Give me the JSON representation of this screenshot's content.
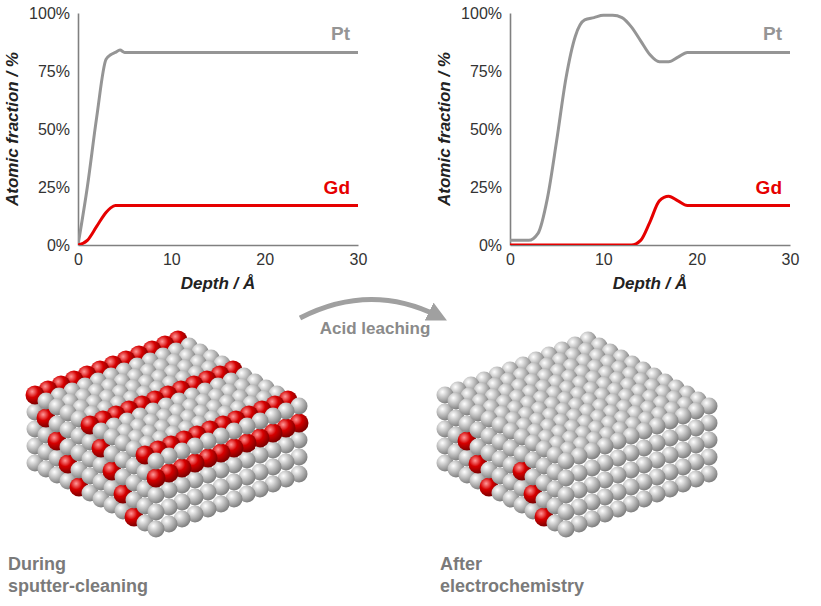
{
  "chart_data": [
    {
      "type": "line",
      "x": [
        0,
        1,
        2,
        3,
        3.5,
        4,
        4.5,
        5,
        10,
        20,
        30
      ],
      "series": [
        {
          "name": "Pt",
          "color": "#959595",
          "values": [
            0,
            25,
            55,
            80,
            82,
            83,
            84,
            83,
            83,
            83,
            83
          ]
        },
        {
          "name": "Gd",
          "color": "#e60000",
          "values": [
            0,
            2,
            8,
            14,
            16,
            17,
            17,
            17,
            17,
            17,
            17
          ]
        }
      ],
      "x_label": "Depth / Å",
      "y_label": "Atomic fraction / %",
      "xlim": [
        0,
        30
      ],
      "xticks": [
        0,
        10,
        20,
        30
      ],
      "ylim": [
        0,
        100
      ],
      "yticks": [
        {
          "value": 0,
          "label": "0%"
        },
        {
          "value": 25,
          "label": "25%"
        },
        {
          "value": 50,
          "label": "50%"
        },
        {
          "value": 75,
          "label": "75%"
        },
        {
          "value": 100,
          "label": "100%"
        }
      ]
    },
    {
      "type": "line",
      "x": [
        0,
        1,
        2,
        3,
        4,
        5,
        6,
        7,
        8,
        9,
        10,
        11,
        12,
        13,
        14,
        15,
        16,
        17,
        18,
        19,
        20,
        25,
        30
      ],
      "series": [
        {
          "name": "Pt",
          "color": "#959595",
          "values": [
            2,
            2,
            2,
            5,
            20,
            45,
            72,
            90,
            97,
            98,
            99,
            99,
            98,
            94,
            88,
            82,
            79,
            79,
            81,
            83,
            83,
            83,
            83
          ]
        },
        {
          "name": "Gd",
          "color": "#e60000",
          "values": [
            0,
            0,
            0,
            0,
            0,
            0,
            0,
            0,
            0,
            0,
            0,
            0,
            0,
            0,
            2,
            10,
            19,
            21,
            19,
            17,
            17,
            17,
            17
          ]
        }
      ],
      "x_label": "Depth / Å",
      "y_label": "Atomic fraction / %",
      "xlim": [
        0,
        30
      ],
      "xticks": [
        0,
        10,
        20,
        30
      ],
      "ylim": [
        0,
        100
      ],
      "yticks": [
        {
          "value": 0,
          "label": "0%"
        },
        {
          "value": 25,
          "label": "25%"
        },
        {
          "value": 50,
          "label": "50%"
        },
        {
          "value": 75,
          "label": "75%"
        },
        {
          "value": 100,
          "label": "100%"
        }
      ]
    }
  ],
  "illustration": {
    "arrow_label": "Acid leaching",
    "left_caption": "During sputter-cleaning",
    "right_caption": "After electrochemistry"
  }
}
